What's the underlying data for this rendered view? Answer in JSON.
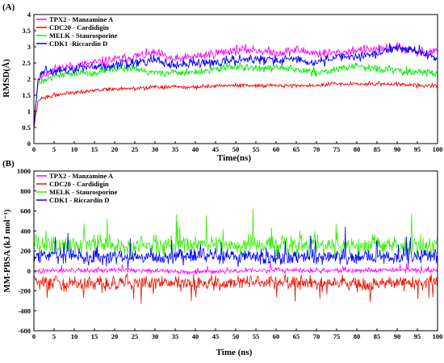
{
  "chart_data": [
    {
      "panel_label": "(A)",
      "type": "line",
      "xlabel": "Time(ns)",
      "ylabel": "RMSD(Å)",
      "xlim": [
        0,
        100
      ],
      "ylim": [
        0,
        4
      ],
      "xticks": [
        "0",
        "5",
        "10",
        "15",
        "20",
        "25",
        "30",
        "35",
        "40",
        "45",
        "50",
        "55",
        "60",
        "65",
        "70",
        "75",
        "80",
        "85",
        "90",
        "95",
        "100"
      ],
      "yticks": [
        "0",
        "0.5",
        "1",
        "1.5",
        "2",
        "2.5",
        "3",
        "3.5",
        "4"
      ],
      "legend_position": "top-left",
      "series": [
        {
          "name": "TPX2 - Manzamine A",
          "color": "#ff00ff",
          "x": [
            0,
            1,
            2,
            5,
            10,
            15,
            20,
            25,
            30,
            35,
            40,
            45,
            50,
            55,
            60,
            65,
            70,
            75,
            80,
            85,
            90,
            95,
            100
          ],
          "y": [
            0.6,
            2.0,
            2.1,
            2.3,
            2.4,
            2.5,
            2.6,
            2.7,
            2.8,
            2.6,
            2.7,
            2.8,
            2.9,
            2.9,
            2.8,
            2.9,
            2.8,
            2.8,
            2.9,
            2.9,
            3.0,
            2.8,
            2.9
          ]
        },
        {
          "name": "CDC20 - Cardidigin",
          "color": "#ff0000",
          "x": [
            0,
            1,
            2,
            5,
            10,
            15,
            20,
            25,
            30,
            35,
            40,
            45,
            50,
            55,
            60,
            65,
            70,
            75,
            80,
            85,
            90,
            95,
            100
          ],
          "y": [
            0.5,
            1.3,
            1.4,
            1.5,
            1.6,
            1.65,
            1.7,
            1.7,
            1.75,
            1.75,
            1.75,
            1.8,
            1.8,
            1.8,
            1.8,
            1.8,
            1.8,
            1.85,
            1.85,
            1.85,
            1.85,
            1.8,
            1.8
          ]
        },
        {
          "name": "MELK - Staurosporine",
          "color": "#00ee00",
          "x": [
            0,
            1,
            2,
            5,
            10,
            15,
            20,
            25,
            30,
            35,
            40,
            45,
            50,
            55,
            60,
            65,
            70,
            75,
            80,
            85,
            90,
            95,
            100
          ],
          "y": [
            0.7,
            1.8,
            2.0,
            2.1,
            2.2,
            2.2,
            2.3,
            2.3,
            2.2,
            2.2,
            2.2,
            2.3,
            2.4,
            2.3,
            2.4,
            2.3,
            2.2,
            2.3,
            2.4,
            2.3,
            2.3,
            2.2,
            2.2
          ]
        },
        {
          "name": "CDK1 -Riccardin D",
          "color": "#0000ff",
          "x": [
            0,
            1,
            2,
            5,
            10,
            15,
            20,
            25,
            30,
            35,
            40,
            45,
            50,
            55,
            60,
            65,
            70,
            75,
            80,
            85,
            90,
            95,
            100
          ],
          "y": [
            0.5,
            1.9,
            2.3,
            2.2,
            2.3,
            2.4,
            2.4,
            2.5,
            2.6,
            2.4,
            2.5,
            2.5,
            2.6,
            2.6,
            2.6,
            2.6,
            2.5,
            2.7,
            2.7,
            2.8,
            3.0,
            2.9,
            2.6
          ]
        }
      ]
    },
    {
      "panel_label": "(B)",
      "type": "line",
      "xlabel": "Time (ns)",
      "ylabel": "MM-PBSA (kJ mol⁻¹)",
      "xlim": [
        0,
        100
      ],
      "ylim": [
        -600,
        1000
      ],
      "xticks": [
        "0",
        "5",
        "10",
        "15",
        "20",
        "25",
        "30",
        "35",
        "40",
        "45",
        "50",
        "55",
        "60",
        "65",
        "70",
        "75",
        "80",
        "85",
        "90",
        "95",
        "100"
      ],
      "yticks": [
        "-600",
        "-400",
        "-200",
        "0",
        "200",
        "400",
        "600",
        "800",
        "1000"
      ],
      "legend_position": "top-left",
      "series": [
        {
          "name": "TPX2 - Manzamine A",
          "color": "#ff00ff",
          "x": [
            0,
            10,
            20,
            30,
            40,
            50,
            60,
            70,
            80,
            90,
            100
          ],
          "y": [
            0,
            0,
            10,
            0,
            -10,
            0,
            10,
            0,
            0,
            10,
            0
          ]
        },
        {
          "name": "CDC20 - Cardidigin",
          "color": "#ee1100",
          "x": [
            0,
            10,
            20,
            30,
            40,
            50,
            60,
            70,
            80,
            90,
            100
          ],
          "y": [
            -120,
            -130,
            -120,
            -110,
            -130,
            -120,
            -110,
            -120,
            -130,
            -120,
            -110
          ]
        },
        {
          "name": "MELK - Staurosporine",
          "color": "#33ee00",
          "x": [
            0,
            10,
            20,
            30,
            40,
            50,
            60,
            70,
            80,
            90,
            100
          ],
          "y": [
            260,
            270,
            250,
            260,
            270,
            260,
            250,
            260,
            250,
            270,
            260
          ]
        },
        {
          "name": "CDK1 - Riccardin D",
          "color": "#0000ff",
          "x": [
            0,
            10,
            20,
            30,
            40,
            50,
            60,
            70,
            80,
            90,
            100
          ],
          "y": [
            140,
            150,
            140,
            130,
            150,
            140,
            130,
            150,
            140,
            140,
            150
          ]
        }
      ]
    }
  ]
}
